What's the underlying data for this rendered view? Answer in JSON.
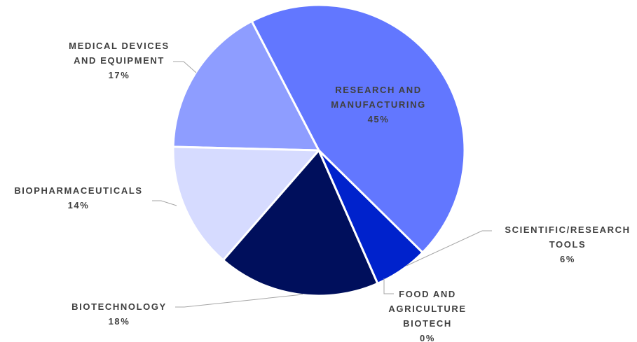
{
  "chart_data": {
    "type": "pie",
    "categories": [
      "RESEARCH AND MANUFACTURING",
      "SCIENTIFIC/RESEARCH TOOLS",
      "FOOD AND AGRICULTURE BIOTECH",
      "BIOTECHNOLOGY",
      "BIOPHARMACEUTICALS",
      "MEDICAL DEVICES AND EQUIPMENT"
    ],
    "values": [
      45,
      6,
      0,
      18,
      14,
      17
    ],
    "value_labels": [
      "45%",
      "6%",
      "0%",
      "18%",
      "14%",
      "17%"
    ],
    "colors": [
      "#6277ff",
      "#0022cc",
      "#3344aa",
      "#000f5c",
      "#d6dbff",
      "#8e9dff"
    ]
  }
}
